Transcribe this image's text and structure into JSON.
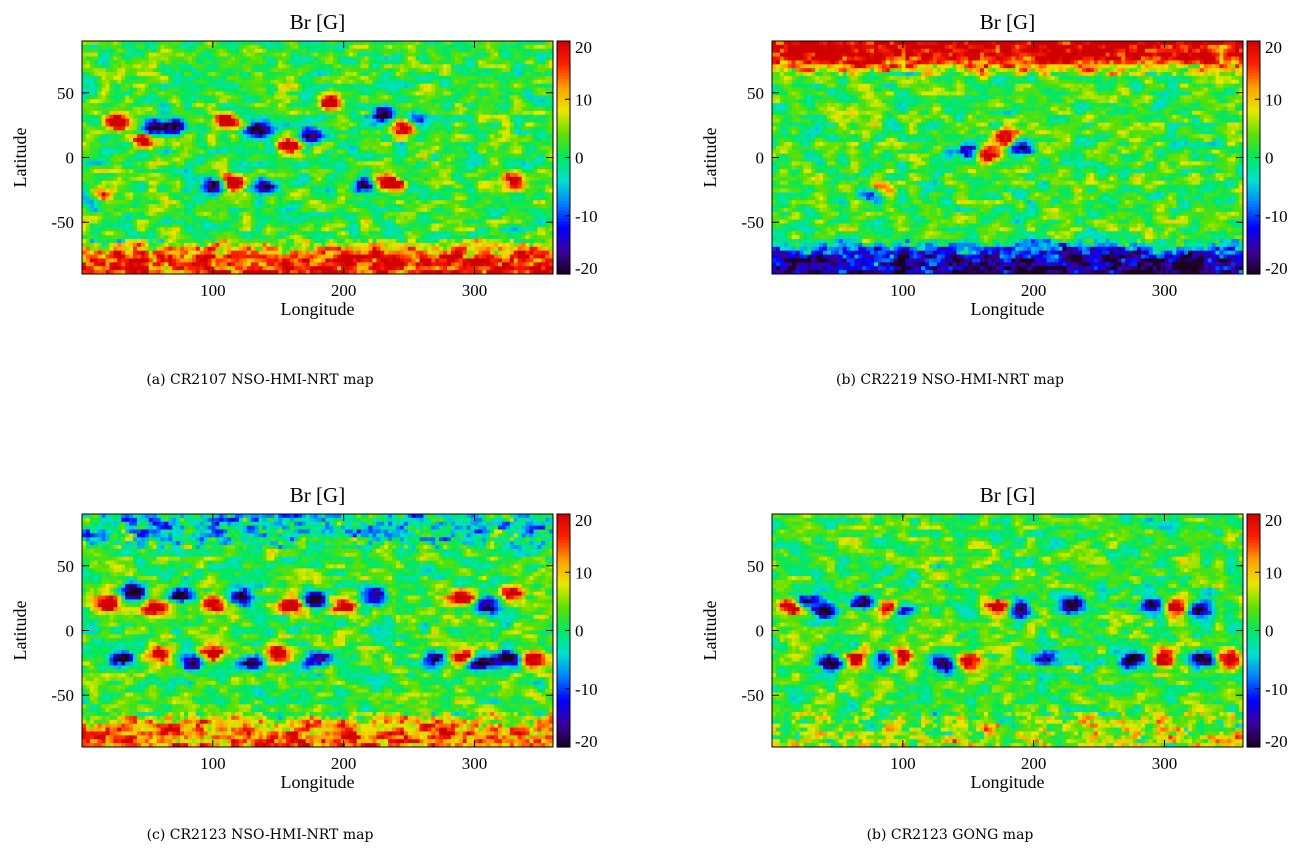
{
  "chart_data": [
    {
      "type": "heatmap",
      "title": "Br [G]",
      "xlabel": "Longitude",
      "ylabel": "Latitude",
      "xlim": [
        0,
        360
      ],
      "ylim": [
        -90,
        90
      ],
      "xticks": [
        "100",
        "200",
        "300"
      ],
      "yticks": [
        "50",
        "0",
        "-50"
      ],
      "colorbar": {
        "min": -20,
        "max": 20,
        "ticks": [
          "20",
          "10",
          "0",
          "-10",
          "-20"
        ]
      },
      "colormap": [
        "#1a0022",
        "#3a00a0",
        "#0000ff",
        "#0080ff",
        "#00e0d0",
        "#00e860",
        "#60e000",
        "#e8e800",
        "#ffa000",
        "#ff2000",
        "#d00000"
      ],
      "polar_field": {
        "north": 0,
        "south": 15
      },
      "caption": "(a) CR2107 NSO-HMI-NRT map",
      "regions": [
        {
          "lon": 55,
          "lat": 22,
          "value": -20
        },
        {
          "lon": 28,
          "lat": 28,
          "value": 20
        },
        {
          "lon": 48,
          "lat": 14,
          "value": 20
        },
        {
          "lon": 72,
          "lat": 24,
          "value": -18
        },
        {
          "lon": 110,
          "lat": 28,
          "value": 20
        },
        {
          "lon": 135,
          "lat": 22,
          "value": -20
        },
        {
          "lon": 160,
          "lat": 10,
          "value": 20
        },
        {
          "lon": 175,
          "lat": 18,
          "value": -18
        },
        {
          "lon": 190,
          "lat": 42,
          "value": 18
        },
        {
          "lon": 230,
          "lat": 34,
          "value": -20
        },
        {
          "lon": 245,
          "lat": 24,
          "value": 20
        },
        {
          "lon": 255,
          "lat": 30,
          "value": -16
        },
        {
          "lon": 100,
          "lat": -22,
          "value": -20
        },
        {
          "lon": 115,
          "lat": -20,
          "value": 20
        },
        {
          "lon": 140,
          "lat": -22,
          "value": -18
        },
        {
          "lon": 215,
          "lat": -22,
          "value": -18
        },
        {
          "lon": 235,
          "lat": -20,
          "value": 20
        },
        {
          "lon": 15,
          "lat": -30,
          "value": 20
        },
        {
          "lon": 10,
          "lat": -32,
          "value": -16
        },
        {
          "lon": 330,
          "lat": -18,
          "value": 16
        }
      ]
    },
    {
      "type": "heatmap",
      "title": "Br [G]",
      "xlabel": "Longitude",
      "ylabel": "Latitude",
      "xlim": [
        0,
        360
      ],
      "ylim": [
        -90,
        90
      ],
      "xticks": [
        "100",
        "200",
        "300"
      ],
      "yticks": [
        "50",
        "0",
        "-50"
      ],
      "colorbar": {
        "min": -20,
        "max": 20,
        "ticks": [
          "20",
          "10",
          "0",
          "-10",
          "-20"
        ]
      },
      "polar_field": {
        "north": 18,
        "south": -18
      },
      "caption": "(b) CR2219 NSO-HMI-NRT map",
      "regions": [
        {
          "lon": 150,
          "lat": 5,
          "value": -18
        },
        {
          "lon": 180,
          "lat": 14,
          "value": 20
        },
        {
          "lon": 188,
          "lat": 8,
          "value": -20
        },
        {
          "lon": 165,
          "lat": 2,
          "value": 16
        },
        {
          "lon": 75,
          "lat": -28,
          "value": -18
        },
        {
          "lon": 80,
          "lat": -24,
          "value": 16
        }
      ]
    },
    {
      "type": "heatmap",
      "title": "Br [G]",
      "xlabel": "Longitude",
      "ylabel": "Latitude",
      "xlim": [
        0,
        360
      ],
      "ylim": [
        -90,
        90
      ],
      "xticks": [
        "100",
        "200",
        "300"
      ],
      "yticks": [
        "50",
        "0",
        "-50"
      ],
      "colorbar": {
        "min": -20,
        "max": 20,
        "ticks": [
          "20",
          "10",
          "0",
          "-10",
          "-20"
        ]
      },
      "polar_field": {
        "north": -6,
        "south": 12
      },
      "caption": "(c) CR2123 NSO-HMI-NRT map",
      "regions": [
        {
          "lon": 20,
          "lat": 20,
          "value": 20
        },
        {
          "lon": 40,
          "lat": 30,
          "value": -20
        },
        {
          "lon": 55,
          "lat": 18,
          "value": 20
        },
        {
          "lon": 75,
          "lat": 28,
          "value": -18
        },
        {
          "lon": 100,
          "lat": 20,
          "value": 20
        },
        {
          "lon": 120,
          "lat": 26,
          "value": -20
        },
        {
          "lon": 160,
          "lat": 20,
          "value": 20
        },
        {
          "lon": 178,
          "lat": 24,
          "value": -20
        },
        {
          "lon": 200,
          "lat": 18,
          "value": 20
        },
        {
          "lon": 225,
          "lat": 26,
          "value": -18
        },
        {
          "lon": 290,
          "lat": 25,
          "value": 18
        },
        {
          "lon": 310,
          "lat": 20,
          "value": -18
        },
        {
          "lon": 330,
          "lat": 28,
          "value": 16
        },
        {
          "lon": 30,
          "lat": -22,
          "value": -20
        },
        {
          "lon": 60,
          "lat": -18,
          "value": 16
        },
        {
          "lon": 85,
          "lat": -25,
          "value": -20
        },
        {
          "lon": 100,
          "lat": -18,
          "value": 20
        },
        {
          "lon": 130,
          "lat": -25,
          "value": -20
        },
        {
          "lon": 150,
          "lat": -18,
          "value": 18
        },
        {
          "lon": 180,
          "lat": -22,
          "value": -18
        },
        {
          "lon": 270,
          "lat": -22,
          "value": -20
        },
        {
          "lon": 290,
          "lat": -20,
          "value": 18
        },
        {
          "lon": 305,
          "lat": -25,
          "value": -20
        },
        {
          "lon": 325,
          "lat": -22,
          "value": -20
        },
        {
          "lon": 345,
          "lat": -22,
          "value": 20
        }
      ]
    },
    {
      "type": "heatmap",
      "title": "Br [G]",
      "xlabel": "Longitude",
      "ylabel": "Latitude",
      "xlim": [
        0,
        360
      ],
      "ylim": [
        -90,
        90
      ],
      "xticks": [
        "100",
        "200",
        "300"
      ],
      "yticks": [
        "50",
        "0",
        "-50"
      ],
      "colorbar": {
        "min": -20,
        "max": 20,
        "ticks": [
          "20",
          "10",
          "0",
          "-10",
          "-20"
        ]
      },
      "polar_field": {
        "north": 0,
        "south": 4
      },
      "caption": "(b) CR2123 GONG map",
      "regions": [
        {
          "lon": 15,
          "lat": 18,
          "value": 20
        },
        {
          "lon": 25,
          "lat": 22,
          "value": -20
        },
        {
          "lon": 40,
          "lat": 15,
          "value": -18
        },
        {
          "lon": 70,
          "lat": 22,
          "value": -20
        },
        {
          "lon": 90,
          "lat": 18,
          "value": 20
        },
        {
          "lon": 100,
          "lat": 16,
          "value": -18
        },
        {
          "lon": 175,
          "lat": 18,
          "value": 20
        },
        {
          "lon": 190,
          "lat": 16,
          "value": -20
        },
        {
          "lon": 230,
          "lat": 20,
          "value": -18
        },
        {
          "lon": 290,
          "lat": 20,
          "value": -20
        },
        {
          "lon": 310,
          "lat": 18,
          "value": 20
        },
        {
          "lon": 325,
          "lat": 16,
          "value": -18
        },
        {
          "lon": 45,
          "lat": -25,
          "value": -18
        },
        {
          "lon": 65,
          "lat": -22,
          "value": 18
        },
        {
          "lon": 85,
          "lat": -22,
          "value": -20
        },
        {
          "lon": 100,
          "lat": -20,
          "value": 20
        },
        {
          "lon": 130,
          "lat": -26,
          "value": -20
        },
        {
          "lon": 150,
          "lat": -24,
          "value": 18
        },
        {
          "lon": 210,
          "lat": -20,
          "value": -16
        },
        {
          "lon": 275,
          "lat": -22,
          "value": -20
        },
        {
          "lon": 300,
          "lat": -22,
          "value": 20
        },
        {
          "lon": 330,
          "lat": -22,
          "value": -20
        },
        {
          "lon": 350,
          "lat": -22,
          "value": 20
        }
      ]
    }
  ]
}
